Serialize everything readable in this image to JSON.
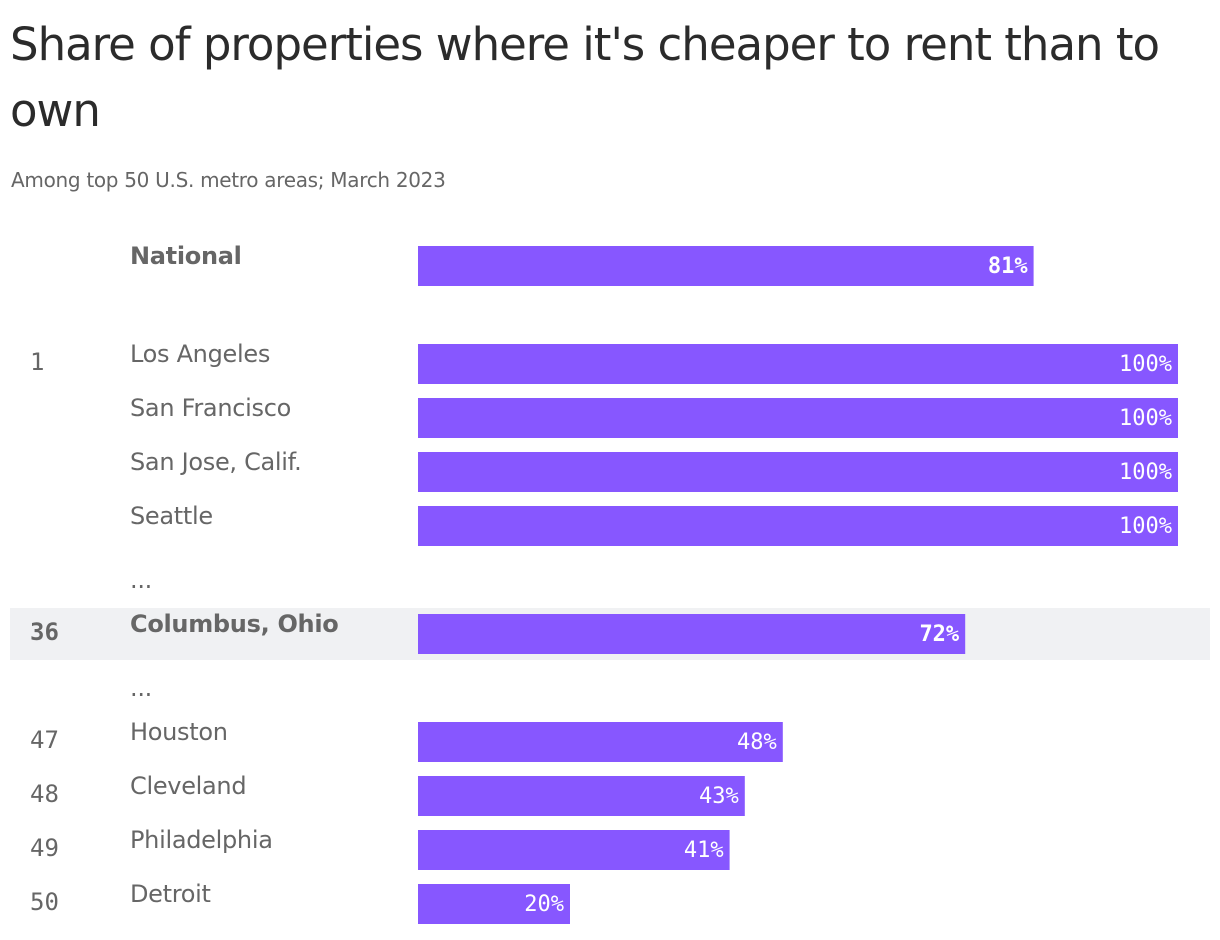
{
  "title": "Share of properties where it's cheaper to rent than to own",
  "subtitle": "Among top 50 U.S. metro areas; March 2023",
  "colors": {
    "bar": "#8757ff",
    "highlight_band": "#f0f1f3",
    "label_text": "#666666",
    "value_text": "#ffffff"
  },
  "chart_data": {
    "type": "bar",
    "orientation": "horizontal",
    "xlim": [
      0,
      100
    ],
    "unit": "%",
    "rows": [
      {
        "rank": "",
        "label": "National",
        "value": 81,
        "value_label": "81%",
        "bold": true
      },
      {
        "rank": "1",
        "label": "Los Angeles",
        "value": 100,
        "value_label": "100%",
        "bold": false
      },
      {
        "rank": "",
        "label": "San Francisco",
        "value": 100,
        "value_label": "100%",
        "bold": false
      },
      {
        "rank": "",
        "label": "San Jose, Calif.",
        "value": 100,
        "value_label": "100%",
        "bold": false
      },
      {
        "rank": "",
        "label": "Seattle",
        "value": 100,
        "value_label": "100%",
        "bold": false
      },
      {
        "rank": "",
        "label": "...",
        "value": null,
        "value_label": "",
        "bold": false
      },
      {
        "rank": "36",
        "label": "Columbus, Ohio",
        "value": 72,
        "value_label": "72%",
        "bold": true,
        "highlight": true
      },
      {
        "rank": "",
        "label": "...",
        "value": null,
        "value_label": "",
        "bold": false
      },
      {
        "rank": "47",
        "label": "Houston",
        "value": 48,
        "value_label": "48%",
        "bold": false
      },
      {
        "rank": "48",
        "label": "Cleveland",
        "value": 43,
        "value_label": "43%",
        "bold": false
      },
      {
        "rank": "49",
        "label": "Philadelphia",
        "value": 41,
        "value_label": "41%",
        "bold": false
      },
      {
        "rank": "50",
        "label": "Detroit",
        "value": 20,
        "value_label": "20%",
        "bold": false
      }
    ]
  }
}
